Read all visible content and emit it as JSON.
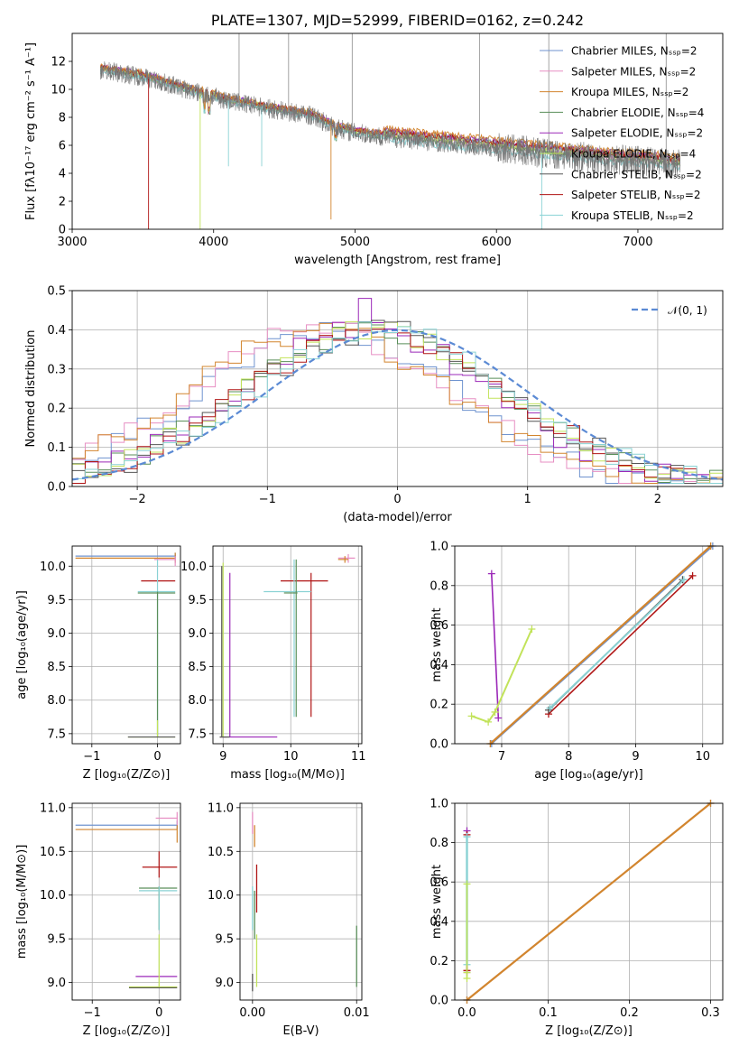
{
  "colors": [
    "#6f93cf",
    "#e78fc3",
    "#d2852e",
    "#5a8f5a",
    "#9b28b8",
    "#c2e35a",
    "#555555",
    "#b01515",
    "#8ad2d4"
  ],
  "chart_data": [
    {
      "id": "spectrum",
      "type": "line",
      "title": "PLATE=1307, MJD=52999, FIBERID=0162, z=0.242",
      "xlabel": "wavelength [Angstrom, rest frame]",
      "ylabel": "Flux [fλ10⁻¹⁷ erg cm⁻² s⁻¹ A⁻¹]",
      "xlim": [
        3000,
        7600
      ],
      "ylim": [
        0,
        14
      ],
      "xticks": [
        "3000",
        "4000",
        "5000",
        "6000",
        "7000"
      ],
      "yticks": [
        "0",
        "2",
        "4",
        "6",
        "8",
        "10",
        "12"
      ],
      "legend_position": "top-right",
      "series": [
        {
          "name": "Chabrier MILES, Nₛₛₚ=2"
        },
        {
          "name": "Salpeter MILES, Nₛₛₚ=2"
        },
        {
          "name": "Kroupa MILES, Nₛₛₚ=2"
        },
        {
          "name": "Chabrier ELODIE, Nₛₛₚ=4"
        },
        {
          "name": "Salpeter ELODIE, Nₛₛₚ=2"
        },
        {
          "name": "Kroupa ELODIE, Nₛₛₚ=4"
        },
        {
          "name": "Chabrier STELIB, Nₛₛₚ=2"
        },
        {
          "name": "Salpeter STELIB, Nₛₛₚ=2"
        },
        {
          "name": "Kroupa STELIB, Nₛₛₚ=2"
        }
      ],
      "continuum_points": [
        [
          3200,
          11.4
        ],
        [
          3500,
          10.9
        ],
        [
          3800,
          10.0
        ],
        [
          4100,
          9.2
        ],
        [
          4400,
          8.6
        ],
        [
          4700,
          8.1
        ],
        [
          4850,
          7.3
        ],
        [
          5000,
          6.9
        ],
        [
          5300,
          6.5
        ],
        [
          5600,
          6.2
        ],
        [
          5900,
          5.9
        ],
        [
          6200,
          5.6
        ],
        [
          6500,
          5.3
        ],
        [
          6800,
          5.0
        ],
        [
          7100,
          4.8
        ],
        [
          7300,
          4.6
        ]
      ]
    },
    {
      "id": "residuals",
      "type": "line",
      "xlabel": "(data-model)/error",
      "ylabel": "Normed distribution",
      "xlim": [
        -2.5,
        2.5
      ],
      "ylim": [
        0,
        0.5
      ],
      "xticks": [
        "−2",
        "−1",
        "0",
        "1",
        "2"
      ],
      "yticks": [
        "0.0",
        "0.1",
        "0.2",
        "0.3",
        "0.4",
        "0.5"
      ],
      "legend_position": "top-right",
      "reference_curve": {
        "name": "𝒩(0, 1)",
        "mean": 0,
        "sigma": 1
      },
      "histogram_peak": 0.48
    },
    {
      "id": "age-vs-Z",
      "type": "scatter",
      "xlabel": "Z [log₁₀(Z/Z⊙)]",
      "ylabel": "age  [log₁₀(age/yr)]",
      "xlim": [
        -1.3,
        0.35
      ],
      "ylim": [
        7.35,
        10.3
      ],
      "xticks": [
        "−1",
        "0"
      ],
      "yticks": [
        "7.5",
        "8.0",
        "8.5",
        "9.0",
        "9.5",
        "10.0"
      ]
    },
    {
      "id": "age-vs-mass",
      "type": "scatter",
      "xlabel": "mass [log₁₀(M/M⊙)]",
      "xlim": [
        8.85,
        11.05
      ],
      "ylim": [
        7.35,
        10.3
      ],
      "xticks": [
        "9",
        "10",
        "11"
      ],
      "yticks": [
        "7.5",
        "8.0",
        "8.5",
        "9.0",
        "9.5",
        "10.0"
      ]
    },
    {
      "id": "weight-vs-age",
      "type": "line",
      "xlabel": "age  [log₁₀(age/yr)]",
      "ylabel": "mass weight",
      "xlim": [
        6.3,
        10.3
      ],
      "ylim": [
        0,
        1
      ],
      "xticks": [
        "7",
        "8",
        "9",
        "10"
      ],
      "yticks": [
        "0.0",
        "0.2",
        "0.4",
        "0.6",
        "0.8",
        "1.0"
      ]
    },
    {
      "id": "mass-vs-Z",
      "type": "scatter",
      "xlabel": "Z [log₁₀(Z/Z⊙)]",
      "ylabel": "mass [log₁₀(M/M⊙)]",
      "xlim": [
        -1.3,
        0.32
      ],
      "ylim": [
        8.8,
        11.05
      ],
      "xticks": [
        "−1",
        "0"
      ],
      "yticks": [
        "9.0",
        "9.5",
        "10.0",
        "10.5",
        "11.0"
      ]
    },
    {
      "id": "mass-vs-ebv",
      "type": "scatter",
      "xlabel": "E(B-V)",
      "xlim": [
        -0.0012,
        0.0105
      ],
      "ylim": [
        8.8,
        11.05
      ],
      "xticks": [
        "0.00",
        "0.01"
      ],
      "yticks": [
        "9.0",
        "9.5",
        "10.0",
        "10.5",
        "11.0"
      ]
    },
    {
      "id": "weight-vs-Z",
      "type": "line",
      "xlabel": "Z [log₁₀(Z/Z⊙)]",
      "ylabel": "mass weight",
      "xlim": [
        -0.015,
        0.315
      ],
      "ylim": [
        0,
        1
      ],
      "xticks": [
        "0.0",
        "0.1",
        "0.2",
        "0.3"
      ],
      "yticks": [
        "0.0",
        "0.2",
        "0.4",
        "0.6",
        "0.8",
        "1.0"
      ]
    }
  ]
}
